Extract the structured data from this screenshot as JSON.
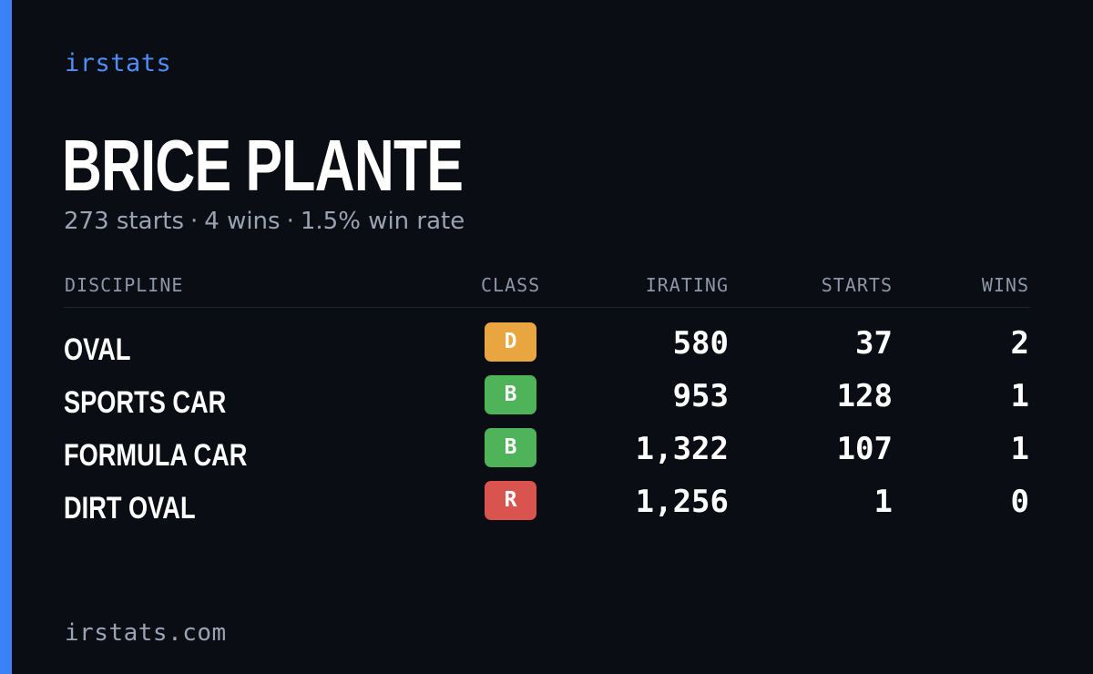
{
  "brand": "irstats",
  "player": {
    "name": "BRICE PLANTE",
    "starts_text": "273 starts",
    "wins_text": "4 wins",
    "win_rate_text": "1.5% win rate",
    "separator": "·"
  },
  "table": {
    "headers": {
      "discipline": "DISCIPLINE",
      "class": "CLASS",
      "irating": "IRATING",
      "starts": "STARTS",
      "wins": "WINS"
    },
    "rows": [
      {
        "discipline": "OVAL",
        "class": "D",
        "class_color": "#e9a640",
        "irating": "580",
        "starts": "37",
        "wins": "2"
      },
      {
        "discipline": "SPORTS CAR",
        "class": "B",
        "class_color": "#4fb35a",
        "irating": "953",
        "starts": "128",
        "wins": "1"
      },
      {
        "discipline": "FORMULA CAR",
        "class": "B",
        "class_color": "#4fb35a",
        "irating": "1,322",
        "starts": "107",
        "wins": "1"
      },
      {
        "discipline": "DIRT OVAL",
        "class": "R",
        "class_color": "#d9534f",
        "irating": "1,256",
        "starts": "1",
        "wins": "0"
      }
    ]
  },
  "footer": "irstats.com",
  "colors": {
    "background": "#0a0d14",
    "accent": "#3b82f6"
  }
}
